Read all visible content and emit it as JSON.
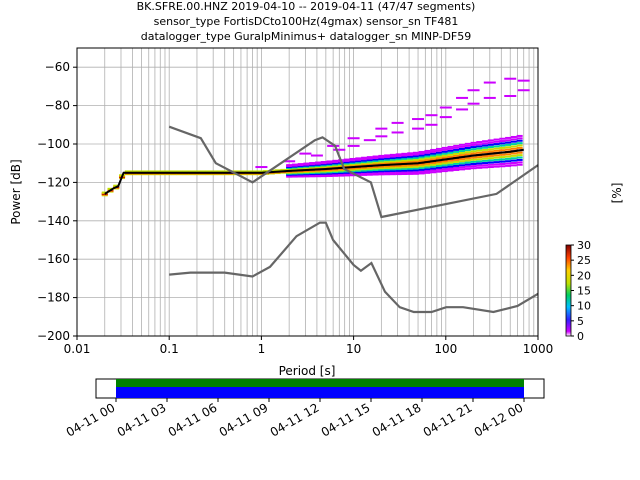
{
  "titles": [
    "BK.SFRE.00.HNZ   2019-04-10 -- 2019-04-11  (47/47 segments)",
    "sensor_type FortisDCto100Hz(4gmax) sensor_sn TF481",
    "datalogger_type GuralpMinimus+ datalogger_sn MINP-DF59"
  ],
  "colorbar": {
    "label": "[%]",
    "ticks": [
      "0",
      "5",
      "10",
      "15",
      "20",
      "25",
      "30"
    ],
    "range": [
      0,
      30
    ]
  },
  "timeline": {
    "ticks": [
      "04-11 00",
      "04-11 03",
      "04-11 06",
      "04-11 09",
      "04-11 12",
      "04-11 15",
      "04-11 18",
      "04-11 21",
      "04-12 00"
    ],
    "colors": {
      "available": "#008000",
      "used": "#0000ff"
    }
  },
  "chart_data": {
    "type": "heatmap",
    "xlabel": "Period [s]",
    "ylabel": "Power [dB]",
    "xscale": "log",
    "xlim": [
      0.01,
      1000
    ],
    "ylim": [
      -200,
      -50
    ],
    "xticks": [
      "0.01",
      "0.1",
      "1",
      "10",
      "100",
      "1000"
    ],
    "yticks": [
      "−60",
      "−80",
      "−100",
      "−120",
      "−140",
      "−160",
      "−180",
      "−200"
    ],
    "ytick_values": [
      -60,
      -80,
      -100,
      -120,
      -140,
      -160,
      -180,
      -200
    ],
    "xtick_values": [
      0.01,
      0.1,
      1,
      10,
      100,
      1000
    ],
    "grid": true,
    "series": [
      {
        "role": "median-ppsd",
        "color": "#000000",
        "x": [
          0.02,
          0.025,
          0.028,
          0.032,
          0.1,
          0.3,
          1,
          2,
          5,
          10,
          20,
          50,
          100,
          200,
          500,
          700
        ],
        "y": [
          -126,
          -123,
          -122,
          -115,
          -115,
          -115,
          -115,
          -114,
          -113,
          -112,
          -111,
          -110,
          -108,
          -106,
          -104,
          -103
        ]
      },
      {
        "role": "nhnm",
        "color": "#666666",
        "x": [
          0.1,
          0.22,
          0.32,
          0.8,
          3.8,
          4.6,
          6.3,
          7.9,
          15.4,
          20,
          354.8,
          1000
        ],
        "y": [
          -91,
          -97,
          -110,
          -120,
          -98,
          -96.5,
          -101,
          -113,
          -120,
          -138,
          -126,
          -111
        ]
      },
      {
        "role": "nlnm",
        "color": "#666666",
        "x": [
          0.1,
          0.17,
          0.4,
          0.8,
          1.24,
          2.4,
          4.3,
          5.0,
          6.0,
          10.0,
          12.0,
          15.6,
          21.9,
          31.6,
          45.0,
          70.0,
          101,
          154,
          328,
          600,
          1000
        ],
        "y": [
          -168,
          -167,
          -167,
          -169,
          -164,
          -148,
          -141,
          -141,
          -150,
          -163,
          -166,
          -162,
          -177,
          -185,
          -187.5,
          -187.5,
          -185,
          -185,
          -187.5,
          -184.4,
          -178
        ]
      },
      {
        "role": "upper-scatter-pink",
        "color": "#cc00ff",
        "x": [
          0.5,
          1,
          2,
          4,
          7,
          10,
          15,
          20,
          30,
          50,
          70,
          100,
          150,
          200,
          300,
          500,
          700
        ],
        "y": [
          -115,
          -112,
          -109,
          -106,
          -103,
          -101,
          -98,
          -96,
          -94,
          -92,
          -90,
          -86,
          -82,
          -79,
          -76,
          -75,
          -72
        ]
      },
      {
        "role": "upper-scatter-top",
        "color": "#cc00ff",
        "x": [
          3,
          6,
          10,
          20,
          30,
          50,
          70,
          100,
          150,
          200,
          300,
          500,
          700
        ],
        "y": [
          -105,
          -101,
          -97,
          -92,
          -89,
          -87,
          -85,
          -81,
          -76,
          -72,
          -68,
          -66,
          -67
        ]
      }
    ]
  }
}
